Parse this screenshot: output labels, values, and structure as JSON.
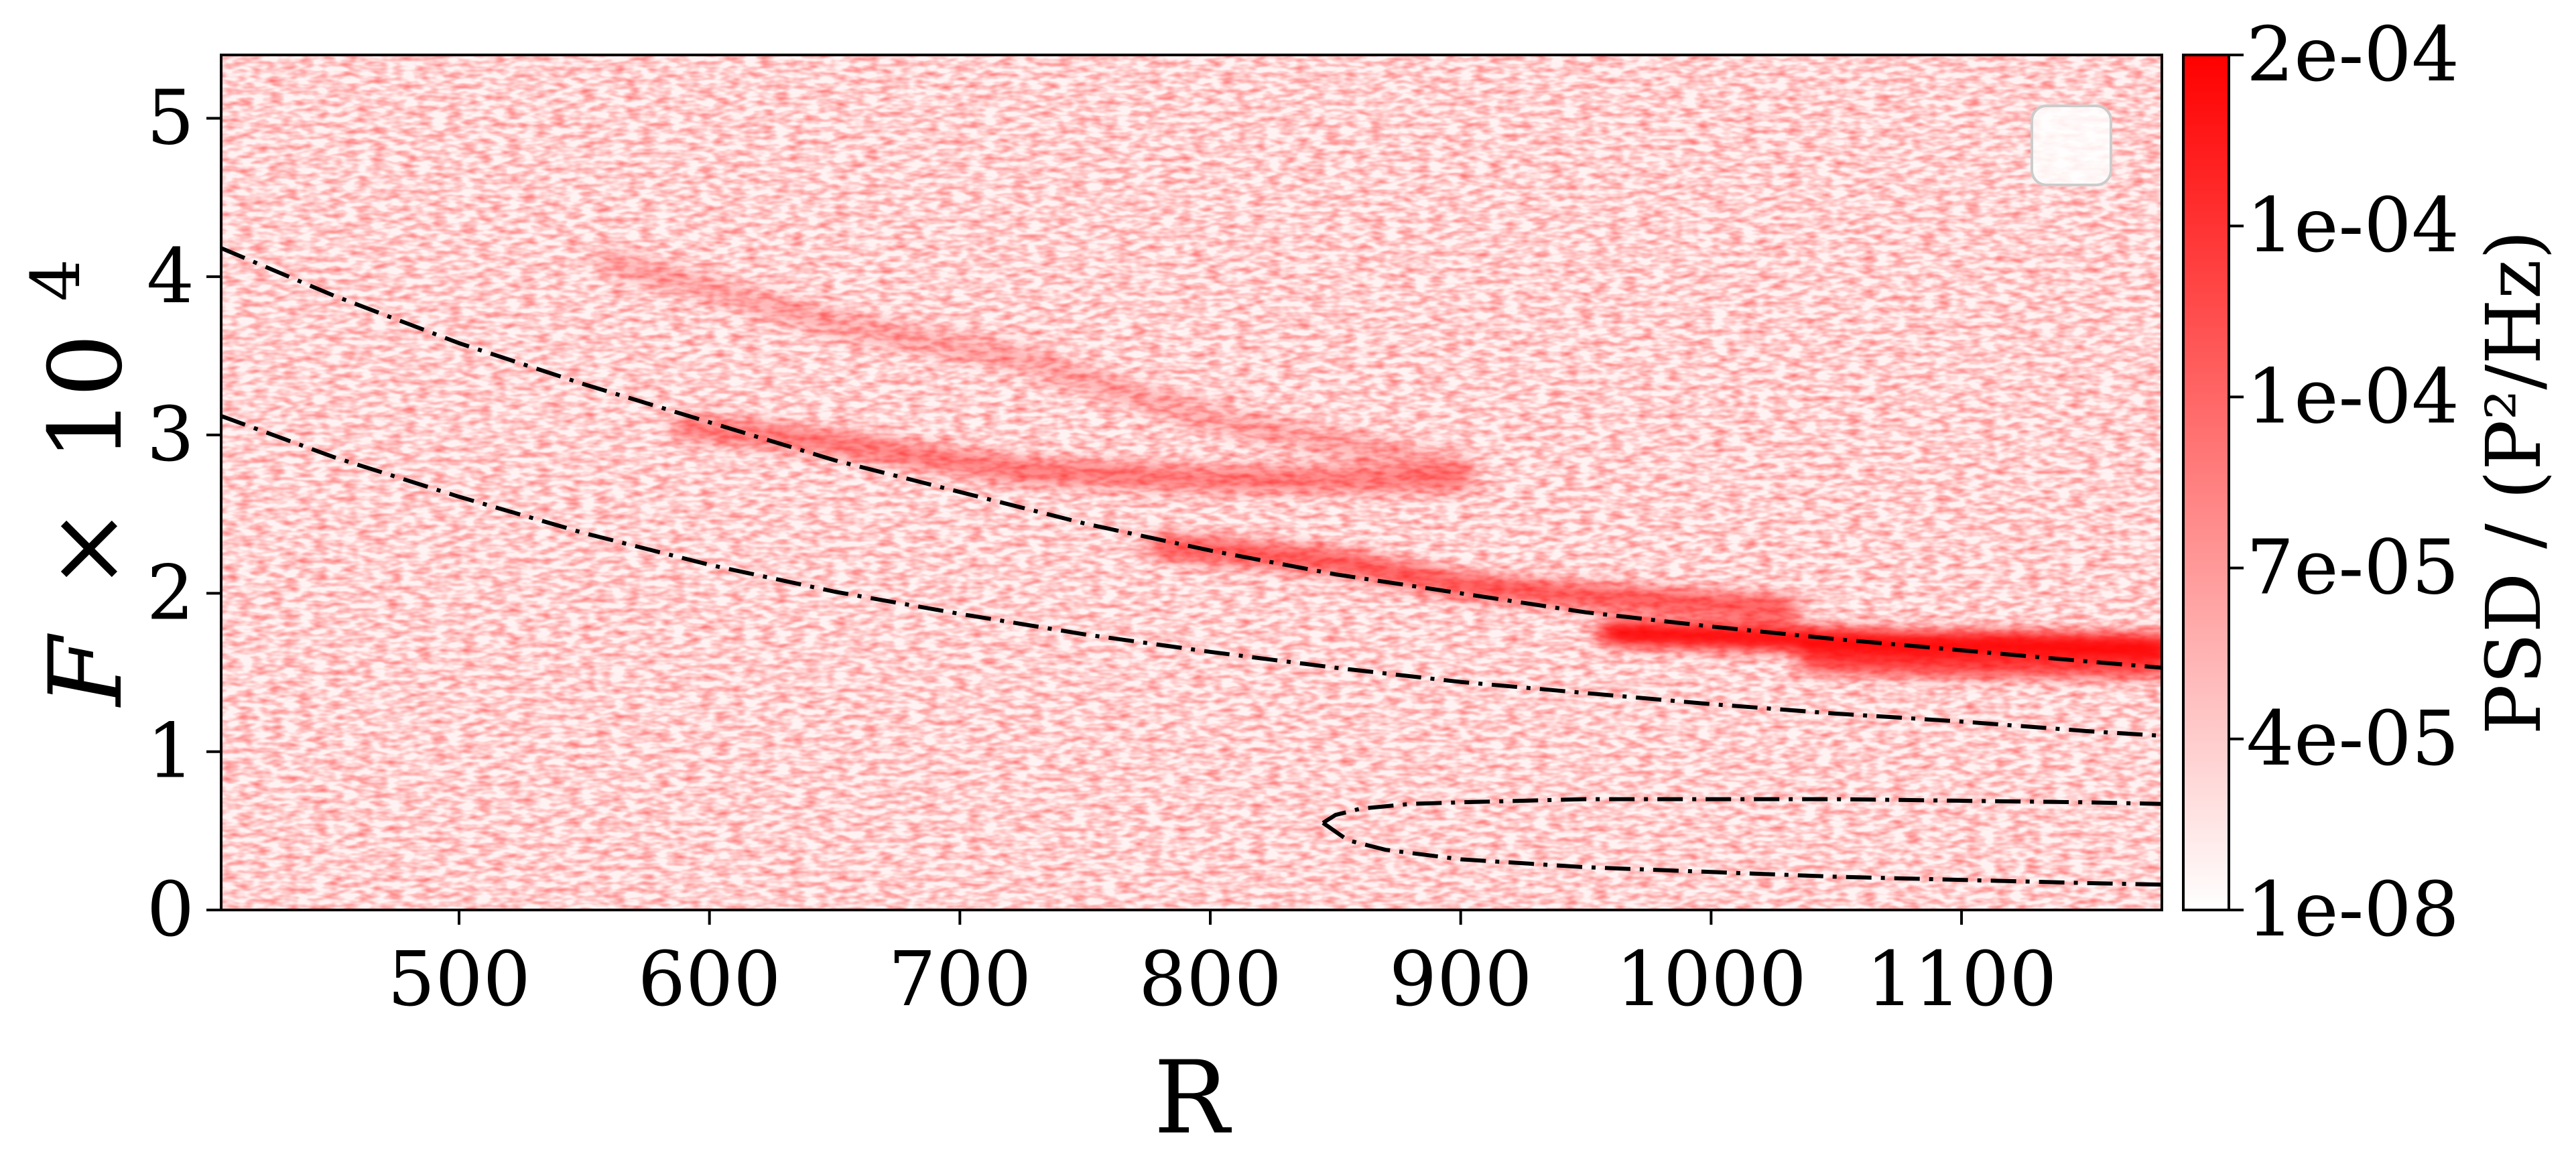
{
  "chart_data": {
    "type": "heatmap",
    "title": "",
    "xlabel": "R",
    "ylabel": {
      "prefix": "F",
      "operator": "×",
      "base": "10",
      "exponent": "4"
    },
    "xlim": [
      405,
      1180
    ],
    "ylim": [
      0,
      5.4
    ],
    "xticks": [
      500,
      600,
      700,
      800,
      900,
      1000,
      1100
    ],
    "yticks": [
      0,
      1,
      2,
      3,
      4,
      5
    ],
    "grid": false,
    "legend": {
      "position": "top-right",
      "entries": []
    },
    "colormap": {
      "low": "#ffffff",
      "high": "#ff0000"
    },
    "colorbar": {
      "label": "PSD / (P²/Hz)",
      "tick_labels": [
        "1e-08",
        "4e-05",
        "7e-05",
        "1e-04",
        "1e-04",
        "2e-04"
      ],
      "range": [
        0,
        1
      ]
    },
    "intensity_ridges": [
      {
        "points": [
          [
            560,
            4.1
          ],
          [
            650,
            3.7
          ],
          [
            720,
            3.5
          ],
          [
            800,
            3.1
          ],
          [
            900,
            2.8
          ]
        ],
        "strength": 0.25
      },
      {
        "points": [
          [
            590,
            3.05
          ],
          [
            650,
            2.95
          ],
          [
            720,
            2.78
          ],
          [
            800,
            2.72
          ],
          [
            900,
            2.72
          ]
        ],
        "strength": 0.45
      },
      {
        "points": [
          [
            780,
            2.3
          ],
          [
            850,
            2.2
          ],
          [
            900,
            2.05
          ],
          [
            950,
            1.98
          ],
          [
            1030,
            1.9
          ]
        ],
        "strength": 0.6
      },
      {
        "points": [
          [
            960,
            1.75
          ],
          [
            1020,
            1.72
          ],
          [
            1080,
            1.68
          ],
          [
            1120,
            1.68
          ],
          [
            1180,
            1.66
          ]
        ],
        "strength": 0.95
      },
      {
        "points": [
          [
            1040,
            1.58
          ],
          [
            1100,
            1.55
          ],
          [
            1180,
            1.55
          ]
        ],
        "strength": 0.7
      }
    ],
    "series": [
      {
        "name": "upper dispersion curve",
        "style": "dashdot",
        "x": [
          405,
          450,
          500,
          550,
          600,
          650,
          700,
          750,
          800,
          850,
          900,
          950,
          1000,
          1050,
          1100,
          1150,
          1180
        ],
        "y": [
          4.18,
          3.88,
          3.58,
          3.32,
          3.08,
          2.84,
          2.64,
          2.44,
          2.27,
          2.12,
          2.0,
          1.88,
          1.79,
          1.71,
          1.64,
          1.57,
          1.53
        ]
      },
      {
        "name": "lower dispersion curve",
        "style": "dashdot",
        "x": [
          405,
          450,
          500,
          550,
          600,
          650,
          700,
          750,
          800,
          850,
          900,
          950,
          1000,
          1050,
          1100,
          1150,
          1180
        ],
        "y": [
          3.12,
          2.86,
          2.61,
          2.38,
          2.18,
          2.01,
          1.87,
          1.74,
          1.63,
          1.53,
          1.44,
          1.37,
          1.3,
          1.24,
          1.19,
          1.13,
          1.1
        ]
      },
      {
        "name": "closed loop upper branch",
        "style": "dashdot",
        "x": [
          845,
          850,
          860,
          880,
          900,
          950,
          1000,
          1050,
          1100,
          1150,
          1180
        ],
        "y": [
          0.55,
          0.6,
          0.64,
          0.67,
          0.68,
          0.7,
          0.7,
          0.7,
          0.69,
          0.68,
          0.67
        ]
      },
      {
        "name": "closed loop lower branch",
        "style": "dashdot",
        "x": [
          845,
          855,
          870,
          900,
          950,
          1000,
          1050,
          1100,
          1150,
          1180
        ],
        "y": [
          0.55,
          0.44,
          0.38,
          0.32,
          0.27,
          0.24,
          0.21,
          0.19,
          0.17,
          0.16
        ]
      }
    ]
  }
}
